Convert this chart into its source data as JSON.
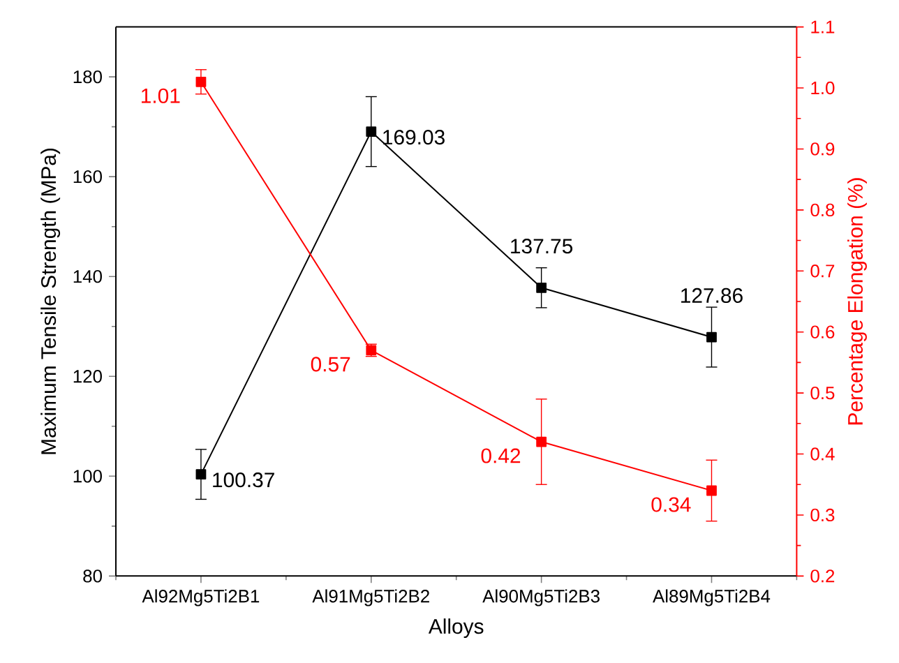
{
  "chart_data": {
    "type": "line",
    "xlabel": "Alloys",
    "ylabel": "Maximum Tensile Strength (MPa)",
    "y2label": "Percentage Elongation (%)",
    "categories": [
      "Al92Mg5Ti2B1",
      "Al91Mg5Ti2B2",
      "Al90Mg5Ti2B3",
      "Al89Mg5Ti2B4"
    ],
    "series": [
      {
        "color": "#000000",
        "values": [
          100.37,
          169.03,
          137.75,
          127.86
        ],
        "errors": [
          5,
          7,
          4,
          6
        ]
      },
      {
        "color": "#ff0000",
        "axis": "y2",
        "values": [
          1.01,
          0.57,
          0.42,
          0.34
        ],
        "errors": [
          0.02,
          0.01,
          0.07,
          0.05
        ]
      }
    ],
    "ylim": [
      80,
      190
    ],
    "yticks": [
      80,
      100,
      120,
      140,
      160,
      180
    ],
    "y2lim": [
      0.2,
      1.1
    ],
    "y2ticks": [
      0.2,
      0.3,
      0.4,
      0.5,
      0.6,
      0.7,
      0.8,
      0.9,
      {
        "value": 1.0,
        "label": "1.0"
      },
      1.1
    ],
    "data_labels": true,
    "marker": "square",
    "line_style": "solid",
    "grid": false
  }
}
